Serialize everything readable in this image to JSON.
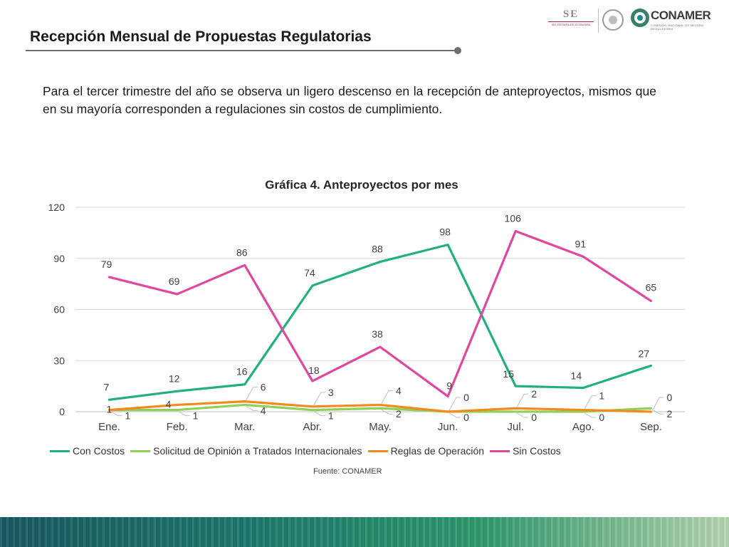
{
  "header": {
    "title": "Recepción Mensual de Propuestas Regulatorias",
    "logos": {
      "se_text": "SE",
      "se_subtext": "SECRETARÍA DE ECONOMÍA",
      "conamer_text": "CONAMER",
      "conamer_subtext": "COMISIÓN NACIONAL DE MEJORA REGULATORIA"
    }
  },
  "paragraph": "Para el tercer trimestre del año se observa un ligero descenso en la recepción de anteproyectos, mismos que en su mayoría corresponden a regulaciones sin costos de cumplimiento.",
  "source": "Fuente: CONAMER",
  "chart_data": {
    "type": "line",
    "title": "Gráfica 4. Anteproyectos por mes",
    "categories": [
      "Ene.",
      "Feb.",
      "Mar.",
      "Abr.",
      "May.",
      "Jun.",
      "Jul.",
      "Ago.",
      "Sep."
    ],
    "ylim": [
      0,
      120
    ],
    "yticks": [
      0,
      30,
      60,
      90,
      120
    ],
    "grid": true,
    "legend_position": "bottom",
    "series": [
      {
        "name": "Con Costos",
        "color": "#21b07f",
        "values": [
          7,
          12,
          16,
          74,
          88,
          98,
          15,
          14,
          27
        ]
      },
      {
        "name": "Solicitud de Opinión a Tratados Internacionales",
        "color": "#8fd158",
        "values": [
          1,
          1,
          4,
          1,
          2,
          0,
          0,
          0,
          2
        ]
      },
      {
        "name": "Reglas de Operación",
        "color": "#f4891f",
        "values": [
          1,
          4,
          6,
          3,
          4,
          0,
          2,
          1,
          0
        ]
      },
      {
        "name": "Sin Costos",
        "color": "#e0479e",
        "values": [
          79,
          69,
          86,
          18,
          38,
          9,
          106,
          91,
          65
        ]
      }
    ]
  }
}
